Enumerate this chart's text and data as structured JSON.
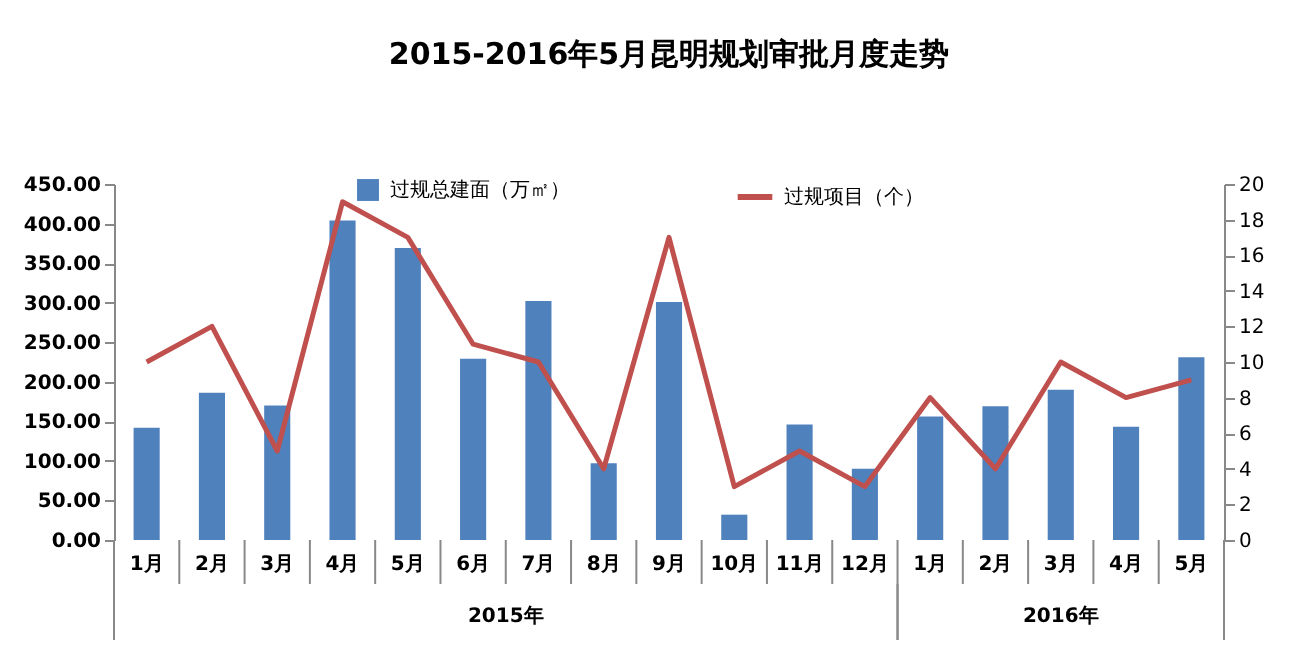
{
  "chart_data": {
    "type": "bar",
    "title": "2015-2016年5月昆明规划审批月度走势",
    "categories": [
      "1月",
      "2月",
      "3月",
      "4月",
      "5月",
      "6月",
      "7月",
      "8月",
      "9月",
      "10月",
      "11月",
      "12月",
      "1月",
      "2月",
      "3月",
      "4月",
      "5月"
    ],
    "series": [
      {
        "name": "过规总建面（万㎡）",
        "color": "#4f81bd",
        "values": [
          142,
          186,
          170,
          404,
          369,
          229,
          302,
          97,
          301,
          32,
          146,
          90,
          156,
          169,
          190,
          143,
          231
        ]
      },
      {
        "name": "过规项目（个）",
        "type": "line",
        "axis": "y2",
        "color": "#c0504d",
        "values": [
          10,
          12,
          5,
          19,
          17,
          11,
          10,
          4,
          17,
          3,
          5,
          3,
          8,
          4,
          10,
          8,
          9
        ]
      }
    ],
    "ylim": [
      0,
      450
    ],
    "yticks": [
      {
        "value": 0,
        "label": "0.00"
      },
      {
        "value": 50,
        "label": "50.00"
      },
      {
        "value": 100,
        "label": "100.00"
      },
      {
        "value": 150,
        "label": "150.00"
      },
      {
        "value": 200,
        "label": "200.00"
      },
      {
        "value": 250,
        "label": "250.00"
      },
      {
        "value": 300,
        "label": "300.00"
      },
      {
        "value": 350,
        "label": "350.00"
      },
      {
        "value": 400,
        "label": "400.00"
      },
      {
        "value": 450,
        "label": "450.00"
      }
    ],
    "y2lim": [
      0,
      20
    ],
    "y2ticks": [
      0,
      2,
      4,
      6,
      8,
      10,
      12,
      14,
      16,
      18,
      20
    ],
    "annotations": [
      "2015年",
      "2016年"
    ],
    "legend": "top"
  }
}
